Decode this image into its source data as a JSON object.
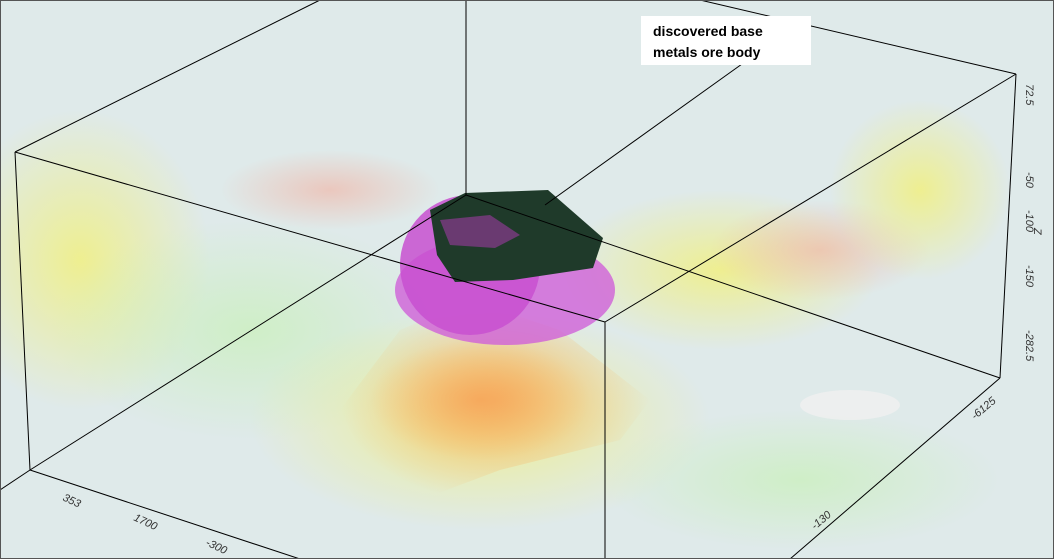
{
  "annotation": {
    "lines": [
      "discovered base",
      "metals ore body"
    ]
  },
  "z_axis": {
    "title": "Z",
    "ticks": [
      "72.5",
      "-50",
      "-100",
      "-150",
      "-282.5"
    ]
  },
  "x_axis": {
    "ticks": [
      "353",
      "1700",
      "-300"
    ]
  },
  "y_axis": {
    "ticks": [
      "-6125",
      "-130"
    ]
  }
}
